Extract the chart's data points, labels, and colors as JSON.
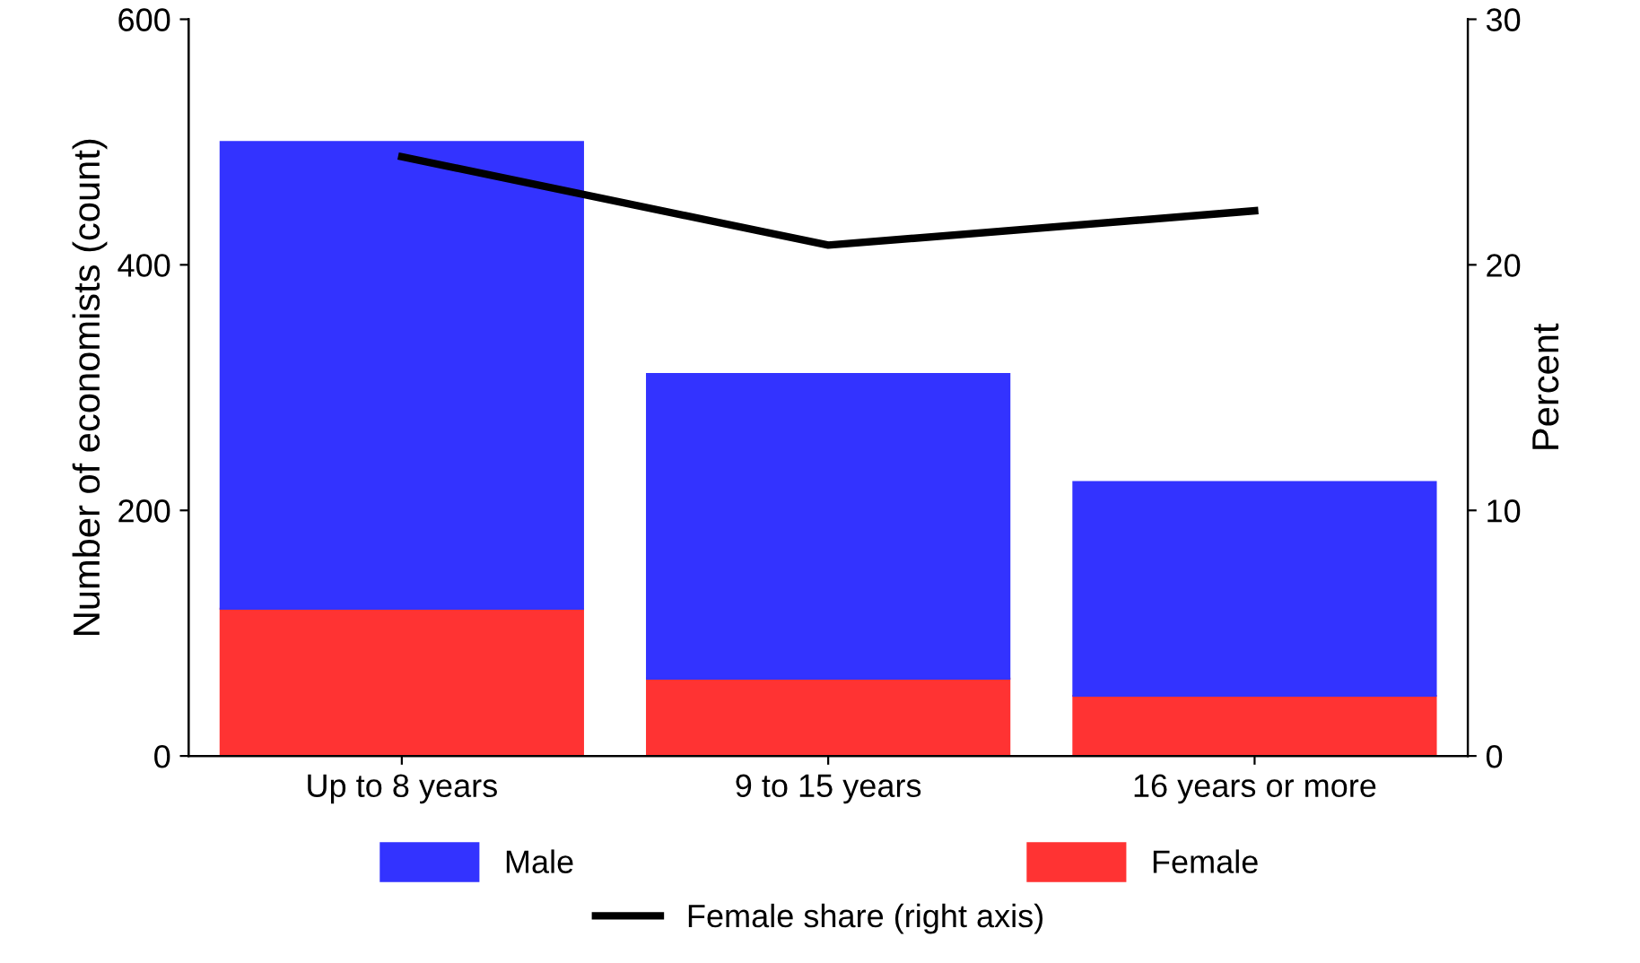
{
  "chart_data": {
    "type": "bar",
    "stacked": true,
    "ylabel": "Number of economists (count)",
    "y2label": "Percent",
    "categories": [
      "Up to 8 years",
      "9 to 15 years",
      "16 years or more"
    ],
    "series": [
      {
        "name": "Female",
        "color": "#ff3333",
        "values": [
          120,
          63,
          49
        ]
      },
      {
        "name": "Male",
        "color": "#3333ff",
        "values": [
          380,
          248,
          174
        ]
      },
      {
        "name": "Female share (right axis)",
        "type": "line",
        "axis": "y2",
        "color": "#000000",
        "values": [
          24.4,
          20.8,
          22.2
        ]
      }
    ],
    "ylim": [
      0,
      600
    ],
    "yticks": [
      0,
      200,
      400,
      600
    ],
    "y2lim": [
      0,
      30
    ],
    "y2ticks": [
      0,
      10,
      20,
      30
    ],
    "grid": false,
    "legend": "bottom"
  }
}
